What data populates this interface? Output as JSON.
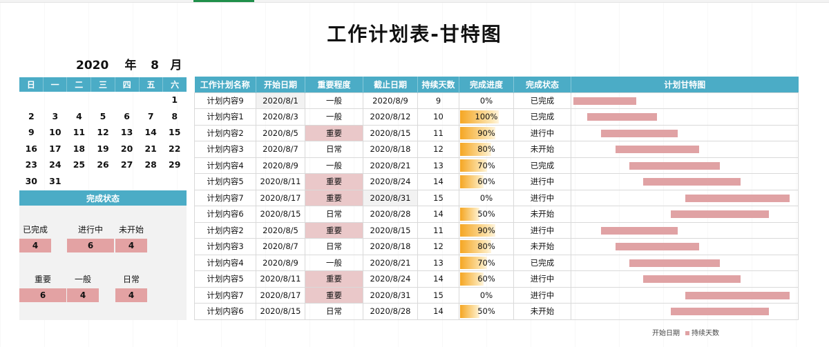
{
  "title": "工作计划表-甘特图",
  "calendar": {
    "year": "2020",
    "year_label": "年",
    "month": "8",
    "month_label": "月",
    "weekdays": [
      "日",
      "一",
      "二",
      "三",
      "四",
      "五",
      "六"
    ],
    "weeks": [
      [
        "",
        "",
        "",
        "",
        "",
        "",
        "1"
      ],
      [
        "2",
        "3",
        "4",
        "5",
        "6",
        "7",
        "8"
      ],
      [
        "9",
        "10",
        "11",
        "12",
        "13",
        "14",
        "15"
      ],
      [
        "16",
        "17",
        "18",
        "19",
        "20",
        "21",
        "22"
      ],
      [
        "23",
        "24",
        "25",
        "26",
        "27",
        "28",
        "29"
      ],
      [
        "30",
        "31",
        "",
        "",
        "",
        "",
        ""
      ]
    ]
  },
  "status_panel": {
    "title": "完成状态",
    "status_counts": [
      {
        "label": "已完成",
        "value": "4"
      },
      {
        "label": "进行中",
        "value": "6"
      },
      {
        "label": "未开始",
        "value": "4"
      }
    ],
    "priority_counts": [
      {
        "label": "重要",
        "value": "6"
      },
      {
        "label": "一般",
        "value": "4"
      },
      {
        "label": "日常",
        "value": "4"
      }
    ]
  },
  "table": {
    "headers": [
      "工作计划名称",
      "开始日期",
      "重要程度",
      "截止日期",
      "持续天数",
      "完成进度",
      "完成状态",
      "计划甘特图"
    ],
    "rows": [
      {
        "name": "计划内容9",
        "start": "2020/8/1",
        "priority": "一般",
        "end": "2020/8/9",
        "days": "9",
        "progress": "0%",
        "status": "已完成"
      },
      {
        "name": "计划内容1",
        "start": "2020/8/3",
        "priority": "一般",
        "end": "2020/8/12",
        "days": "10",
        "progress": "100%",
        "status": "已完成"
      },
      {
        "name": "计划内容2",
        "start": "2020/8/5",
        "priority": "重要",
        "end": "2020/8/15",
        "days": "11",
        "progress": "90%",
        "status": "进行中"
      },
      {
        "name": "计划内容3",
        "start": "2020/8/7",
        "priority": "日常",
        "end": "2020/8/18",
        "days": "12",
        "progress": "80%",
        "status": "未开始"
      },
      {
        "name": "计划内容4",
        "start": "2020/8/9",
        "priority": "一般",
        "end": "2020/8/21",
        "days": "13",
        "progress": "70%",
        "status": "已完成"
      },
      {
        "name": "计划内容5",
        "start": "2020/8/11",
        "priority": "重要",
        "end": "2020/8/24",
        "days": "14",
        "progress": "60%",
        "status": "进行中"
      },
      {
        "name": "计划内容7",
        "start": "2020/8/17",
        "priority": "重要",
        "end": "2020/8/31",
        "days": "15",
        "progress": "0%",
        "status": "进行中"
      },
      {
        "name": "计划内容6",
        "start": "2020/8/15",
        "priority": "日常",
        "end": "2020/8/28",
        "days": "14",
        "progress": "50%",
        "status": "未开始"
      },
      {
        "name": "计划内容2",
        "start": "2020/8/5",
        "priority": "重要",
        "end": "2020/8/15",
        "days": "11",
        "progress": "90%",
        "status": "进行中"
      },
      {
        "name": "计划内容3",
        "start": "2020/8/7",
        "priority": "日常",
        "end": "2020/8/18",
        "days": "12",
        "progress": "80%",
        "status": "未开始"
      },
      {
        "name": "计划内容4",
        "start": "2020/8/9",
        "priority": "一般",
        "end": "2020/8/21",
        "days": "13",
        "progress": "70%",
        "status": "已完成"
      },
      {
        "name": "计划内容5",
        "start": "2020/8/11",
        "priority": "重要",
        "end": "2020/8/24",
        "days": "14",
        "progress": "60%",
        "status": "进行中"
      },
      {
        "name": "计划内容7",
        "start": "2020/8/17",
        "priority": "重要",
        "end": "2020/8/31",
        "days": "15",
        "progress": "0%",
        "status": "进行中"
      },
      {
        "name": "计划内容6",
        "start": "2020/8/15",
        "priority": "日常",
        "end": "2020/8/28",
        "days": "14",
        "progress": "50%",
        "status": "未开始"
      }
    ]
  },
  "legend": {
    "start_label": "开始日期",
    "duration_label": "持续天数"
  },
  "colors": {
    "header": "#4bacc6",
    "important": "#eac8c9",
    "bar": "#e0a2a4",
    "progress": "#f5a623"
  }
}
